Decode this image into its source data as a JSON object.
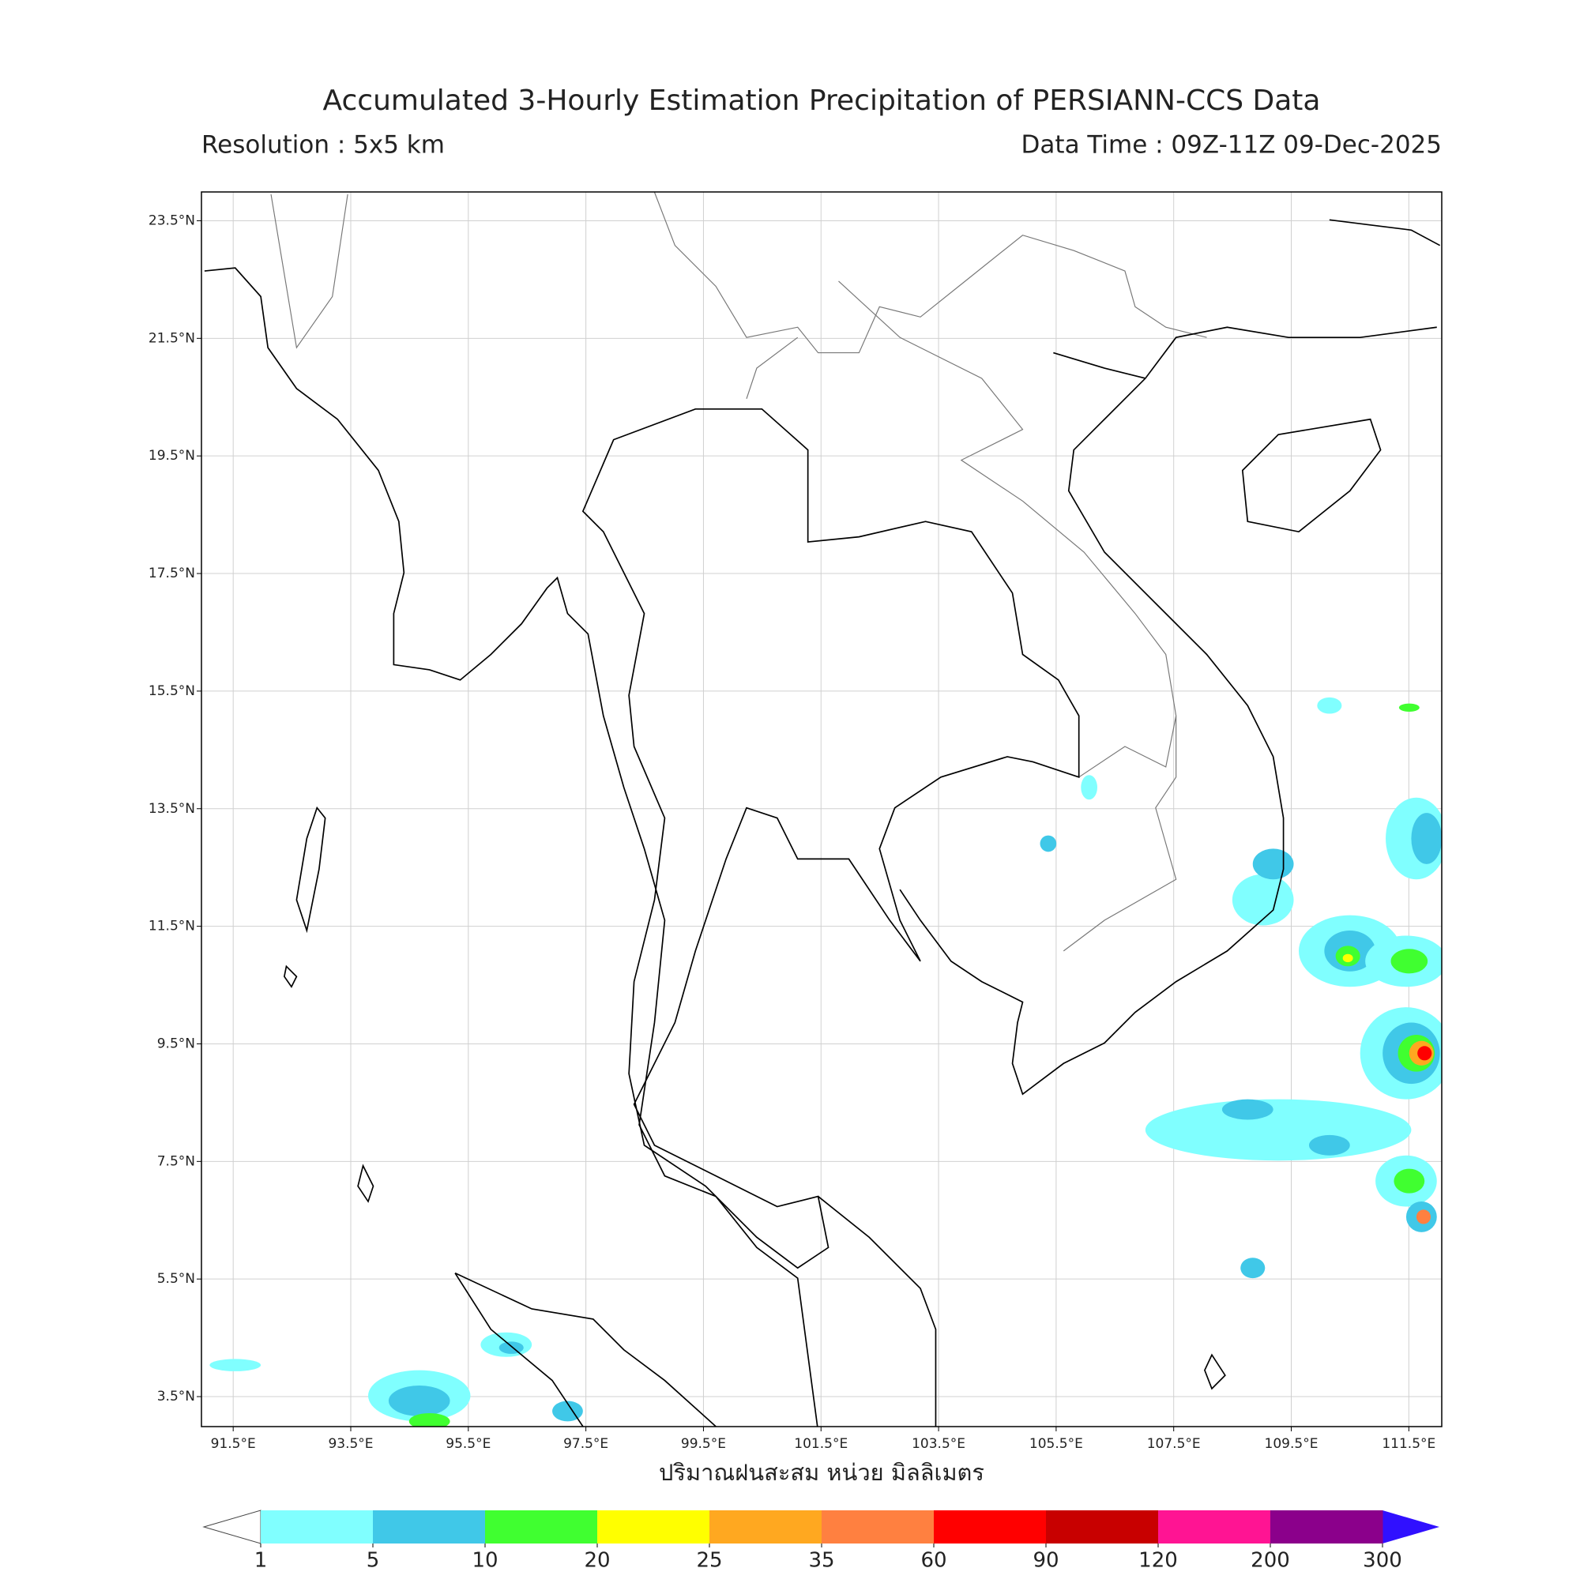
{
  "header": {
    "title": "Accumulated 3-Hourly Estimation Precipitation of PERSIANN-CCS Data",
    "resolution": "Resolution : 5x5 km",
    "data_time": "Data Time : 09Z-11Z 09-Dec-2025"
  },
  "map": {
    "xlim": [
      90.96,
      112.06
    ],
    "ylim": [
      2.99,
      23.99
    ],
    "grid": true,
    "lon_ticks": [
      {
        "value": 91.5,
        "label": "91.5°E"
      },
      {
        "value": 93.5,
        "label": "93.5°E"
      },
      {
        "value": 95.5,
        "label": "95.5°E"
      },
      {
        "value": 97.5,
        "label": "97.5°E"
      },
      {
        "value": 99.5,
        "label": "99.5°E"
      },
      {
        "value": 101.5,
        "label": "101.5°E"
      },
      {
        "value": 103.5,
        "label": "103.5°E"
      },
      {
        "value": 105.5,
        "label": "105.5°E"
      },
      {
        "value": 107.5,
        "label": "107.5°E"
      },
      {
        "value": 109.5,
        "label": "109.5°E"
      },
      {
        "value": 111.5,
        "label": "111.5°E"
      }
    ],
    "lat_ticks": [
      {
        "value": 23.5,
        "label": "23.5°N"
      },
      {
        "value": 21.5,
        "label": "21.5°N"
      },
      {
        "value": 19.5,
        "label": "19.5°N"
      },
      {
        "value": 17.5,
        "label": "17.5°N"
      },
      {
        "value": 15.5,
        "label": "15.5°N"
      },
      {
        "value": 13.5,
        "label": "13.5°N"
      },
      {
        "value": 11.5,
        "label": "11.5°N"
      },
      {
        "value": 9.5,
        "label": "9.5°N"
      },
      {
        "value": 7.5,
        "label": "7.5°N"
      },
      {
        "value": 5.5,
        "label": "5.5°N"
      },
      {
        "value": 3.5,
        "label": "3.5°N"
      }
    ],
    "xlabel": "ปริมาณฝนสะสม หน่วย มิลลิเมตร"
  },
  "colorbar": {
    "levels": [
      1,
      5,
      10,
      20,
      25,
      35,
      60,
      90,
      120,
      200,
      300
    ],
    "colors": [
      "#80ffff",
      "#40c8e8",
      "#40ff30",
      "#ffff00",
      "#ffa820",
      "#ff8040",
      "#ff0000",
      "#c80000",
      "#ff1493",
      "#8b008b"
    ],
    "under_color": "#ffffff",
    "over_color": "#3010ff"
  }
}
